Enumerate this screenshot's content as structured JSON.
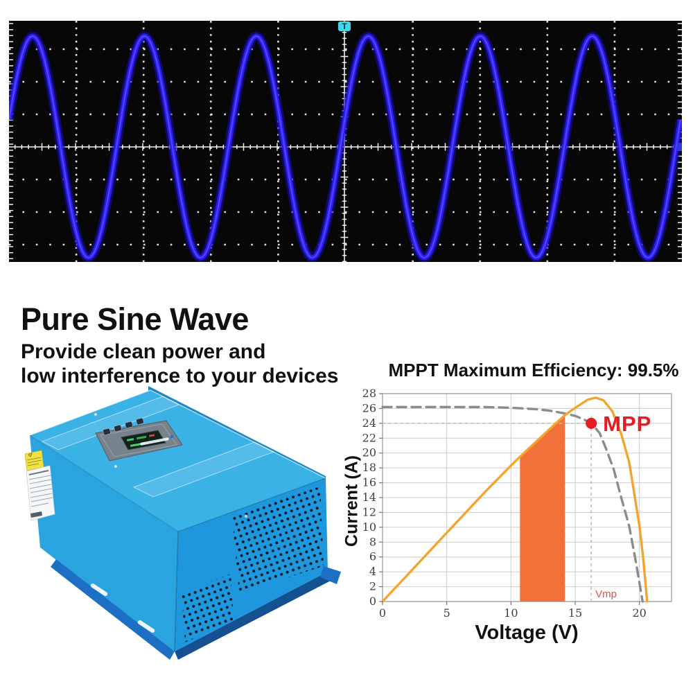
{
  "page": {
    "background": "#ffffff"
  },
  "headline": {
    "title": "Pure Sine Wave",
    "subtitle_line1": "Provide clean power and",
    "subtitle_line2": "low interference to your devices",
    "color": "#111111"
  },
  "oscilloscope": {
    "bg": "#070707",
    "grid_color": "#f2f2f2",
    "wave_color": "#2a1cf0",
    "wave_glow_color": "#150da8",
    "wave_highlight_color": "#5a4cff",
    "trigger_label": "T",
    "trigger_color": "#3fd6e6"
  },
  "mppt_chart": {
    "title": "MPPT Maximum Efficiency: 99.5%",
    "xlabel": "Voltage (V)",
    "ylabel": "Current (A)"
  },
  "chart_data": [
    {
      "type": "line",
      "name": "oscilloscope-sine-wave",
      "title": "",
      "description": "Pure sine wave output shown on oscilloscope with dotted graticule",
      "x_divisions": 10,
      "y_divisions": 8,
      "cycles_shown": 6,
      "amplitude_divisions": 3.4,
      "grid": "dotted",
      "series": [
        {
          "name": "pure-sine-output",
          "color": "#2a1cf0"
        }
      ]
    },
    {
      "type": "line",
      "title": "MPPT Maximum Efficiency: 99.5%",
      "xlabel": "Voltage (V)",
      "ylabel": "Current (A)",
      "xlim": [
        0,
        22.5
      ],
      "ylim": [
        0,
        28
      ],
      "x_ticks": [
        0,
        5,
        10,
        15,
        20
      ],
      "y_ticks": [
        0,
        2,
        4,
        6,
        8,
        10,
        12,
        14,
        16,
        18,
        20,
        22,
        24,
        26,
        28
      ],
      "grid": true,
      "legend": false,
      "series": [
        {
          "name": "iv-curve",
          "style": "dashed",
          "color": "#8b8b8b",
          "points": [
            [
              0,
              26.2
            ],
            [
              4,
              26.2
            ],
            [
              8,
              26.2
            ],
            [
              10,
              26.1
            ],
            [
              12,
              25.9
            ],
            [
              13,
              25.7
            ],
            [
              14,
              25.4
            ],
            [
              15,
              25.0
            ],
            [
              15.7,
              24.5
            ],
            [
              16.25,
              24.0
            ],
            [
              16.9,
              22.7
            ],
            [
              17.4,
              20.6
            ],
            [
              18.0,
              17.8
            ],
            [
              18.6,
              13.9
            ],
            [
              19.2,
              10.2
            ],
            [
              19.7,
              5.6
            ],
            [
              20.25,
              0
            ]
          ]
        },
        {
          "name": "power-curve",
          "style": "solid",
          "color": "#f3a42f",
          "points": [
            [
              0,
              0
            ],
            [
              2,
              3.7
            ],
            [
              4,
              7.4
            ],
            [
              6,
              11.1
            ],
            [
              8,
              14.8
            ],
            [
              10,
              18.3
            ],
            [
              10.7,
              19.5
            ],
            [
              12,
              21.6
            ],
            [
              13,
              23.2
            ],
            [
              14,
              24.8
            ],
            [
              14.2,
              25.1
            ],
            [
              15,
              26.1
            ],
            [
              16,
              27.2
            ],
            [
              16.6,
              27.45
            ],
            [
              17.2,
              27.1
            ],
            [
              17.9,
              25.6
            ],
            [
              18.6,
              22.5
            ],
            [
              19.2,
              18.8
            ],
            [
              19.6,
              14.5
            ],
            [
              20.0,
              10.2
            ],
            [
              20.3,
              5.8
            ],
            [
              20.6,
              0
            ]
          ]
        }
      ],
      "mpp_point": {
        "x": 16.25,
        "y": 24,
        "label": "MPP",
        "color": "#e51c23"
      },
      "vmp_marker": {
        "x": 16.25,
        "label": "Vmp",
        "color": "#d9534f"
      },
      "imp_guide_y": 24,
      "shaded_region": {
        "color": "#f2703a",
        "points": [
          [
            10.7,
            0
          ],
          [
            10.7,
            19.5
          ],
          [
            12,
            21.6
          ],
          [
            13,
            23.2
          ],
          [
            14,
            24.8
          ],
          [
            14.2,
            25.1
          ],
          [
            14.2,
            0
          ]
        ]
      }
    }
  ],
  "device": {
    "name": "blue-solar-inverter",
    "top_color": "#3ab2e6",
    "left_color": "#2aa4df",
    "right_color": "#1f97dd",
    "flange_color": "#1d6fc4",
    "panel_color": "#78828d",
    "lcd_color": "#12211a",
    "lcd_text_color": "#3ec76d",
    "label_yellow": "#f1e143",
    "label_white": "#f5f7f8"
  }
}
